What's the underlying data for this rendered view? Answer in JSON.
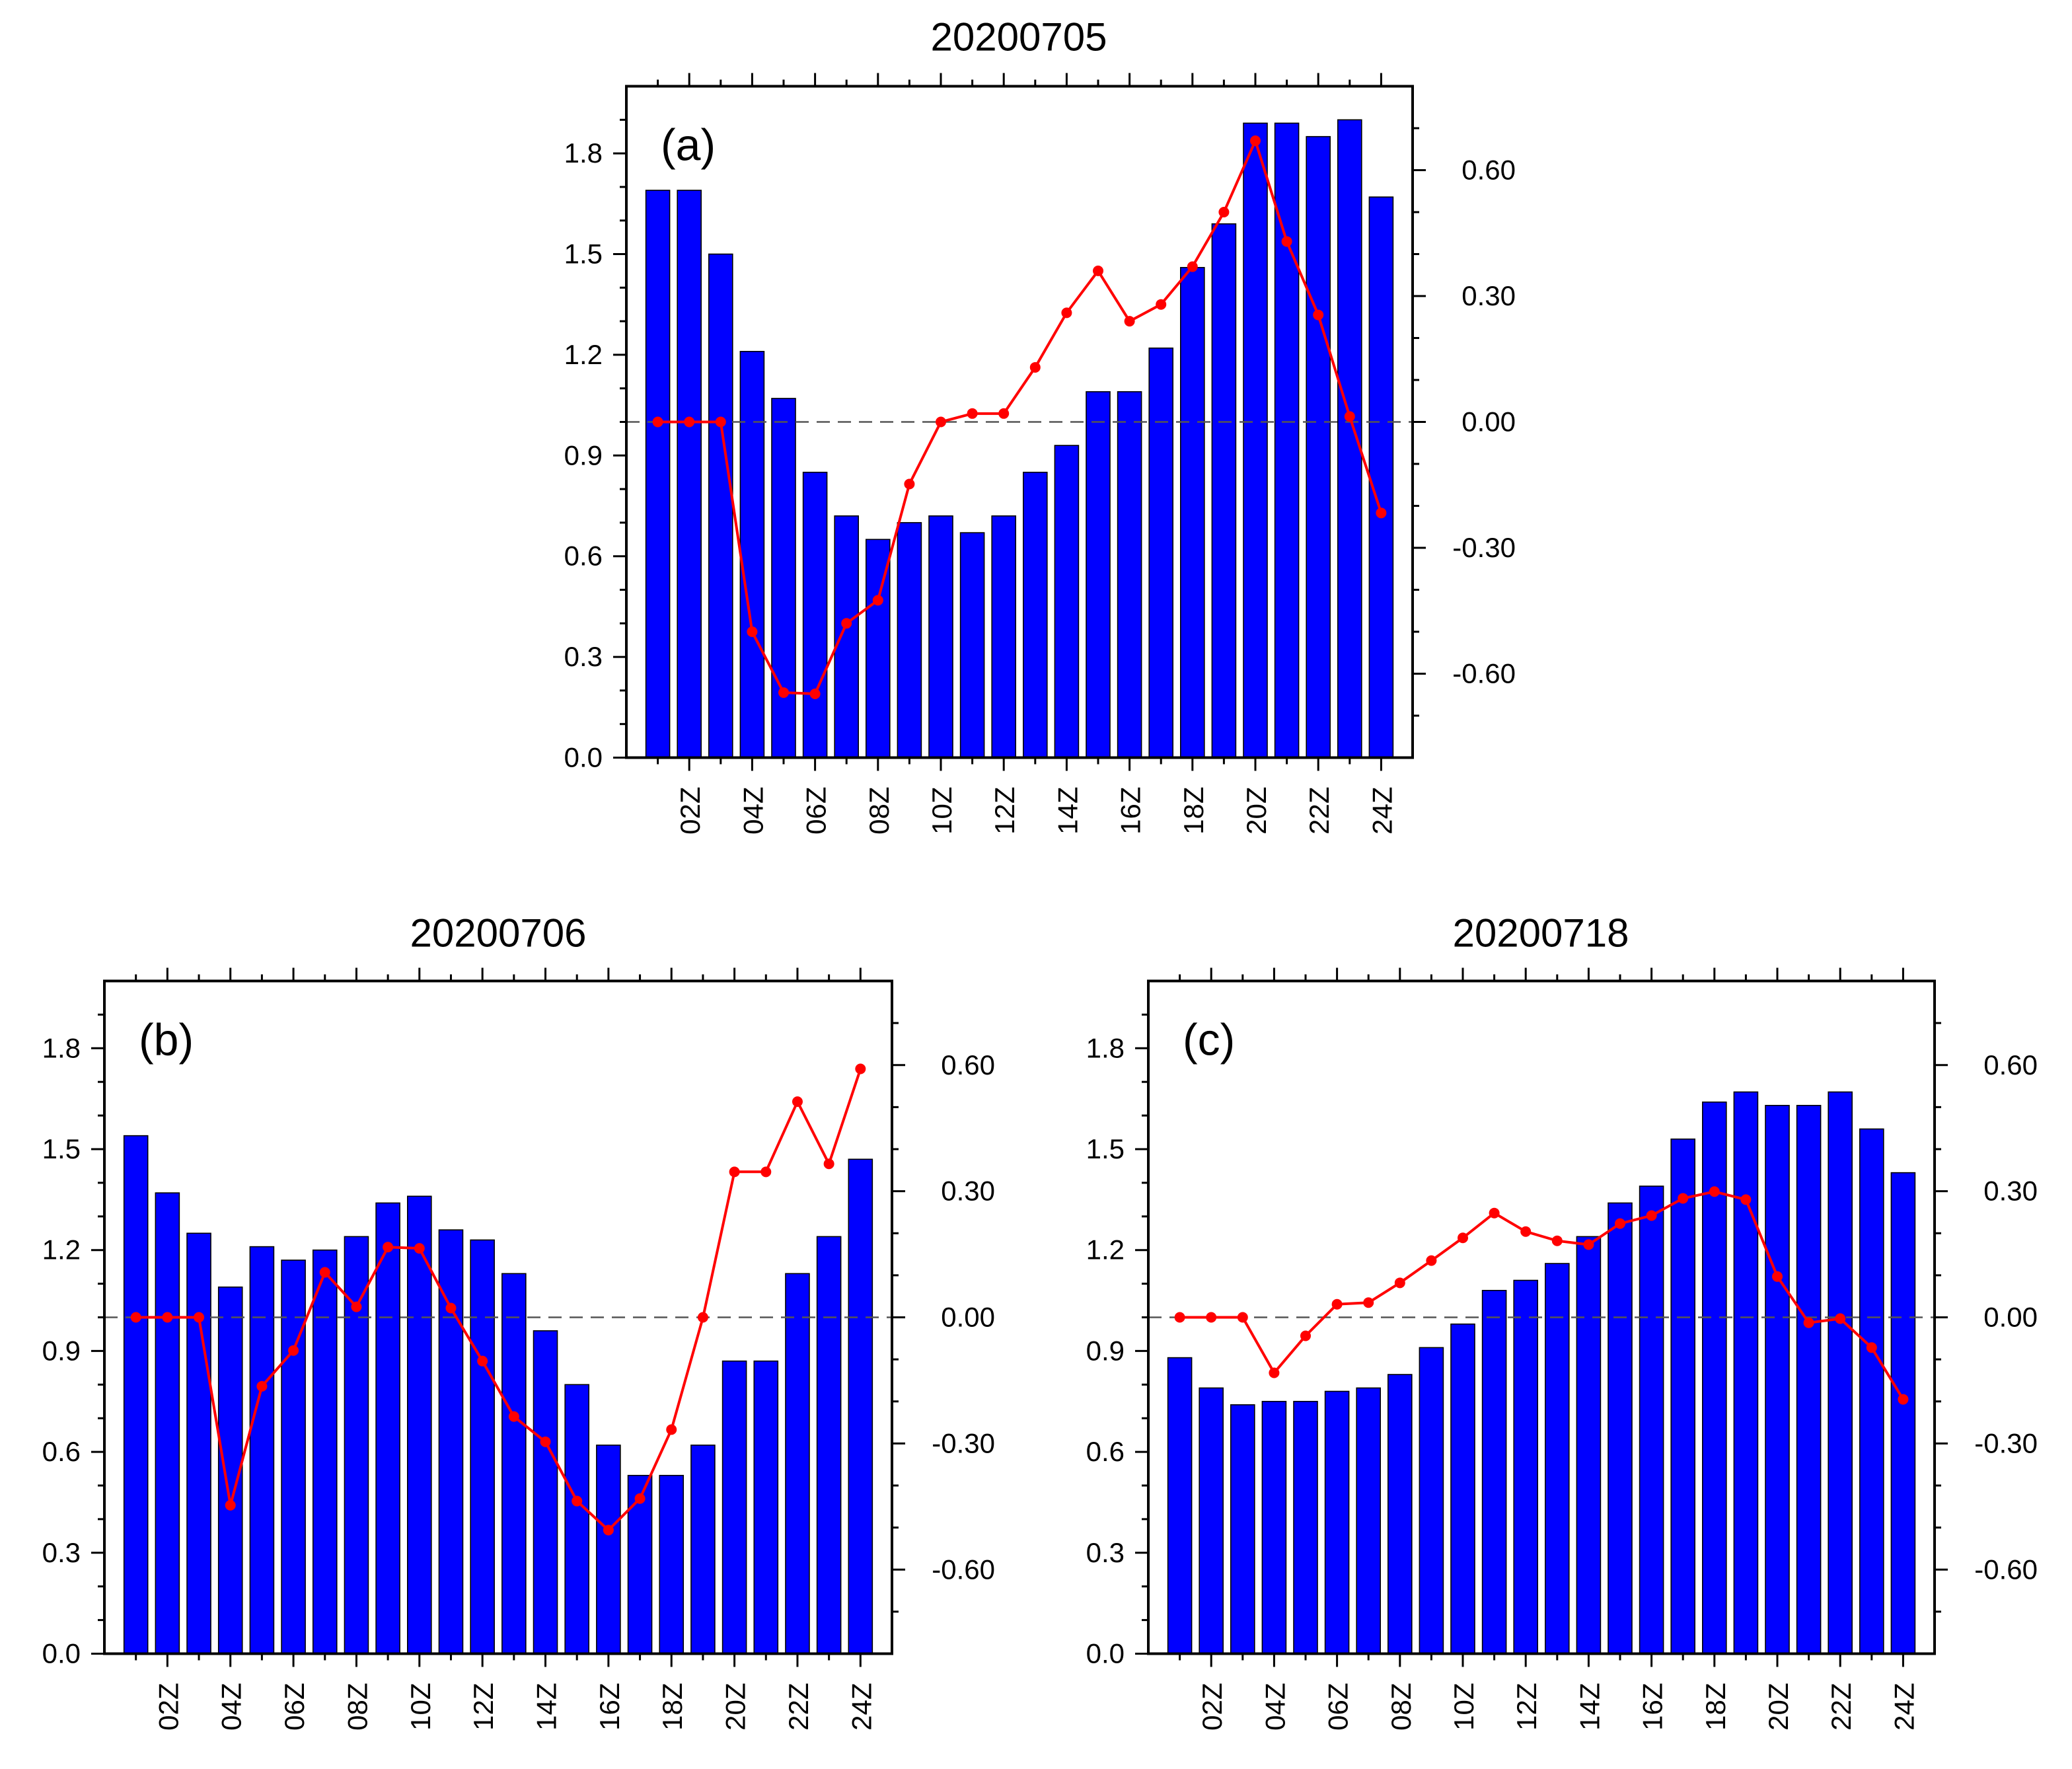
{
  "chart_data": [
    {
      "type": "bar+line",
      "panel_label": "(a)",
      "title": "20200705",
      "categories": [
        "01Z",
        "02Z",
        "03Z",
        "04Z",
        "05Z",
        "06Z",
        "07Z",
        "08Z",
        "09Z",
        "10Z",
        "11Z",
        "12Z",
        "13Z",
        "14Z",
        "15Z",
        "16Z",
        "17Z",
        "18Z",
        "19Z",
        "20Z",
        "21Z",
        "22Z",
        "23Z",
        "24Z"
      ],
      "x_tick_labels": [
        "02Z",
        "04Z",
        "06Z",
        "08Z",
        "10Z",
        "12Z",
        "14Z",
        "16Z",
        "18Z",
        "20Z",
        "22Z",
        "24Z"
      ],
      "bar_values": [
        1.69,
        1.69,
        1.5,
        1.21,
        1.07,
        0.85,
        0.72,
        0.65,
        0.7,
        0.72,
        0.67,
        0.72,
        0.85,
        0.93,
        1.09,
        1.09,
        1.22,
        1.46,
        1.59,
        1.89,
        1.89,
        1.85,
        1.9,
        1.67
      ],
      "line_values": [
        0.0,
        0.0,
        0.0,
        -0.5,
        -0.645,
        -0.648,
        -0.48,
        -0.425,
        -0.148,
        0.0,
        0.02,
        0.02,
        0.13,
        0.26,
        0.36,
        0.24,
        0.28,
        0.37,
        0.5,
        0.67,
        0.43,
        0.255,
        0.013,
        -0.217
      ],
      "ylim_left": [
        0,
        2.0
      ],
      "ylim_right": [
        -0.8,
        0.8
      ],
      "left_tick_labels": [
        "0.0",
        "0.3",
        "0.6",
        "0.9",
        "1.2",
        "1.5",
        "1.8"
      ],
      "right_tick_labels": [
        "-0.60",
        "-0.30",
        "0.00",
        "0.30",
        "0.60"
      ],
      "reference_line": {
        "axis": "right",
        "value": 0.0,
        "style": "dashed"
      }
    },
    {
      "type": "bar+line",
      "panel_label": "(b)",
      "title": "20200706",
      "categories": [
        "01Z",
        "02Z",
        "03Z",
        "04Z",
        "05Z",
        "06Z",
        "07Z",
        "08Z",
        "09Z",
        "10Z",
        "11Z",
        "12Z",
        "13Z",
        "14Z",
        "15Z",
        "16Z",
        "17Z",
        "18Z",
        "19Z",
        "20Z",
        "21Z",
        "22Z",
        "23Z",
        "24Z"
      ],
      "x_tick_labels": [
        "02Z",
        "04Z",
        "06Z",
        "08Z",
        "10Z",
        "12Z",
        "14Z",
        "16Z",
        "18Z",
        "20Z",
        "22Z",
        "24Z"
      ],
      "bar_values": [
        1.54,
        1.37,
        1.25,
        1.09,
        1.21,
        1.17,
        1.2,
        1.24,
        1.34,
        1.36,
        1.26,
        1.23,
        1.13,
        0.96,
        0.8,
        0.62,
        0.53,
        0.53,
        0.62,
        0.87,
        0.87,
        1.13,
        1.24,
        1.47
      ],
      "line_values": [
        0.0,
        0.0,
        0.0,
        -0.447,
        -0.164,
        -0.079,
        0.107,
        0.025,
        0.167,
        0.164,
        0.022,
        -0.104,
        -0.236,
        -0.296,
        -0.437,
        -0.506,
        -0.431,
        -0.267,
        0.0,
        0.346,
        0.346,
        0.513,
        0.365,
        0.591
      ],
      "ylim_left": [
        0,
        2.0
      ],
      "ylim_right": [
        -0.8,
        0.8
      ],
      "left_tick_labels": [
        "0.0",
        "0.3",
        "0.6",
        "0.9",
        "1.2",
        "1.5",
        "1.8"
      ],
      "right_tick_labels": [
        "-0.60",
        "-0.30",
        "0.00",
        "0.30",
        "0.60"
      ],
      "reference_line": {
        "axis": "right",
        "value": 0.0,
        "style": "dashed"
      }
    },
    {
      "type": "bar+line",
      "panel_label": "(c)",
      "title": "20200718",
      "categories": [
        "01Z",
        "02Z",
        "03Z",
        "04Z",
        "05Z",
        "06Z",
        "07Z",
        "08Z",
        "09Z",
        "10Z",
        "11Z",
        "12Z",
        "13Z",
        "14Z",
        "15Z",
        "16Z",
        "17Z",
        "18Z",
        "19Z",
        "20Z",
        "21Z",
        "22Z",
        "23Z",
        "24Z"
      ],
      "x_tick_labels": [
        "02Z",
        "04Z",
        "06Z",
        "08Z",
        "10Z",
        "12Z",
        "14Z",
        "16Z",
        "18Z",
        "20Z",
        "22Z",
        "24Z"
      ],
      "bar_values": [
        0.88,
        0.79,
        0.74,
        0.75,
        0.75,
        0.78,
        0.79,
        0.83,
        0.91,
        0.98,
        1.08,
        1.11,
        1.16,
        1.24,
        1.34,
        1.39,
        1.53,
        1.64,
        1.67,
        1.63,
        1.63,
        1.67,
        1.56,
        1.43
      ],
      "line_values": [
        0.0,
        0.0,
        0.0,
        -0.132,
        -0.044,
        0.031,
        0.035,
        0.082,
        0.135,
        0.189,
        0.248,
        0.204,
        0.182,
        0.173,
        0.223,
        0.242,
        0.283,
        0.299,
        0.28,
        0.097,
        -0.013,
        -0.003,
        -0.072,
        -0.195
      ],
      "ylim_left": [
        0,
        2.0
      ],
      "ylim_right": [
        -0.8,
        0.8
      ],
      "left_tick_labels": [
        "0.0",
        "0.3",
        "0.6",
        "0.9",
        "1.2",
        "1.5",
        "1.8"
      ],
      "right_tick_labels": [
        "-0.60",
        "-0.30",
        "0.00",
        "0.30",
        "0.60"
      ],
      "reference_line": {
        "axis": "right",
        "value": 0.0,
        "style": "dashed"
      }
    }
  ],
  "colors": {
    "bars": "#0000ff",
    "bar_edge": "#000000",
    "line": "#ff0000",
    "reference_line": "#555555"
  }
}
